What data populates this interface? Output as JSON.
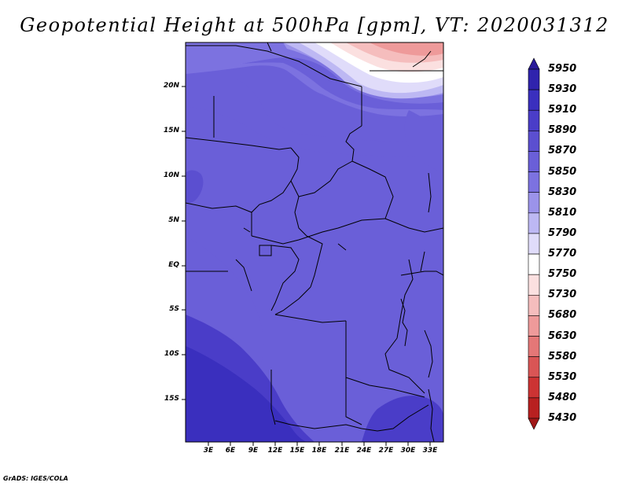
{
  "title": "Geopotential Height at 500hPa [gpm], VT: 2020031312",
  "credit": "GrADS: IGES/COLA",
  "lat_labels": [
    "20N",
    "15N",
    "10N",
    "5N",
    "EQ",
    "5S",
    "10S",
    "15S"
  ],
  "lon_labels": [
    "3E",
    "6E",
    "9E",
    "12E",
    "15E",
    "18E",
    "21E",
    "24E",
    "27E",
    "30E",
    "33E"
  ],
  "colorbar": {
    "levels": [
      "5950",
      "5930",
      "5910",
      "5890",
      "5870",
      "5850",
      "5830",
      "5810",
      "5790",
      "5770",
      "5750",
      "5730",
      "5680",
      "5630",
      "5580",
      "5530",
      "5480",
      "5430"
    ],
    "colors": [
      "#2a1b9a",
      "#2f23ad",
      "#3a2fbe",
      "#4a3dc8",
      "#5b4fd0",
      "#6a5fd8",
      "#7c72e0",
      "#9b93ea",
      "#bdb8f3",
      "#e0dcfa",
      "#ffffff",
      "#fbe0e0",
      "#f5bdbd",
      "#ee9a9a",
      "#e47777",
      "#d95555",
      "#cc3333",
      "#b82020",
      "#a01818"
    ]
  }
}
